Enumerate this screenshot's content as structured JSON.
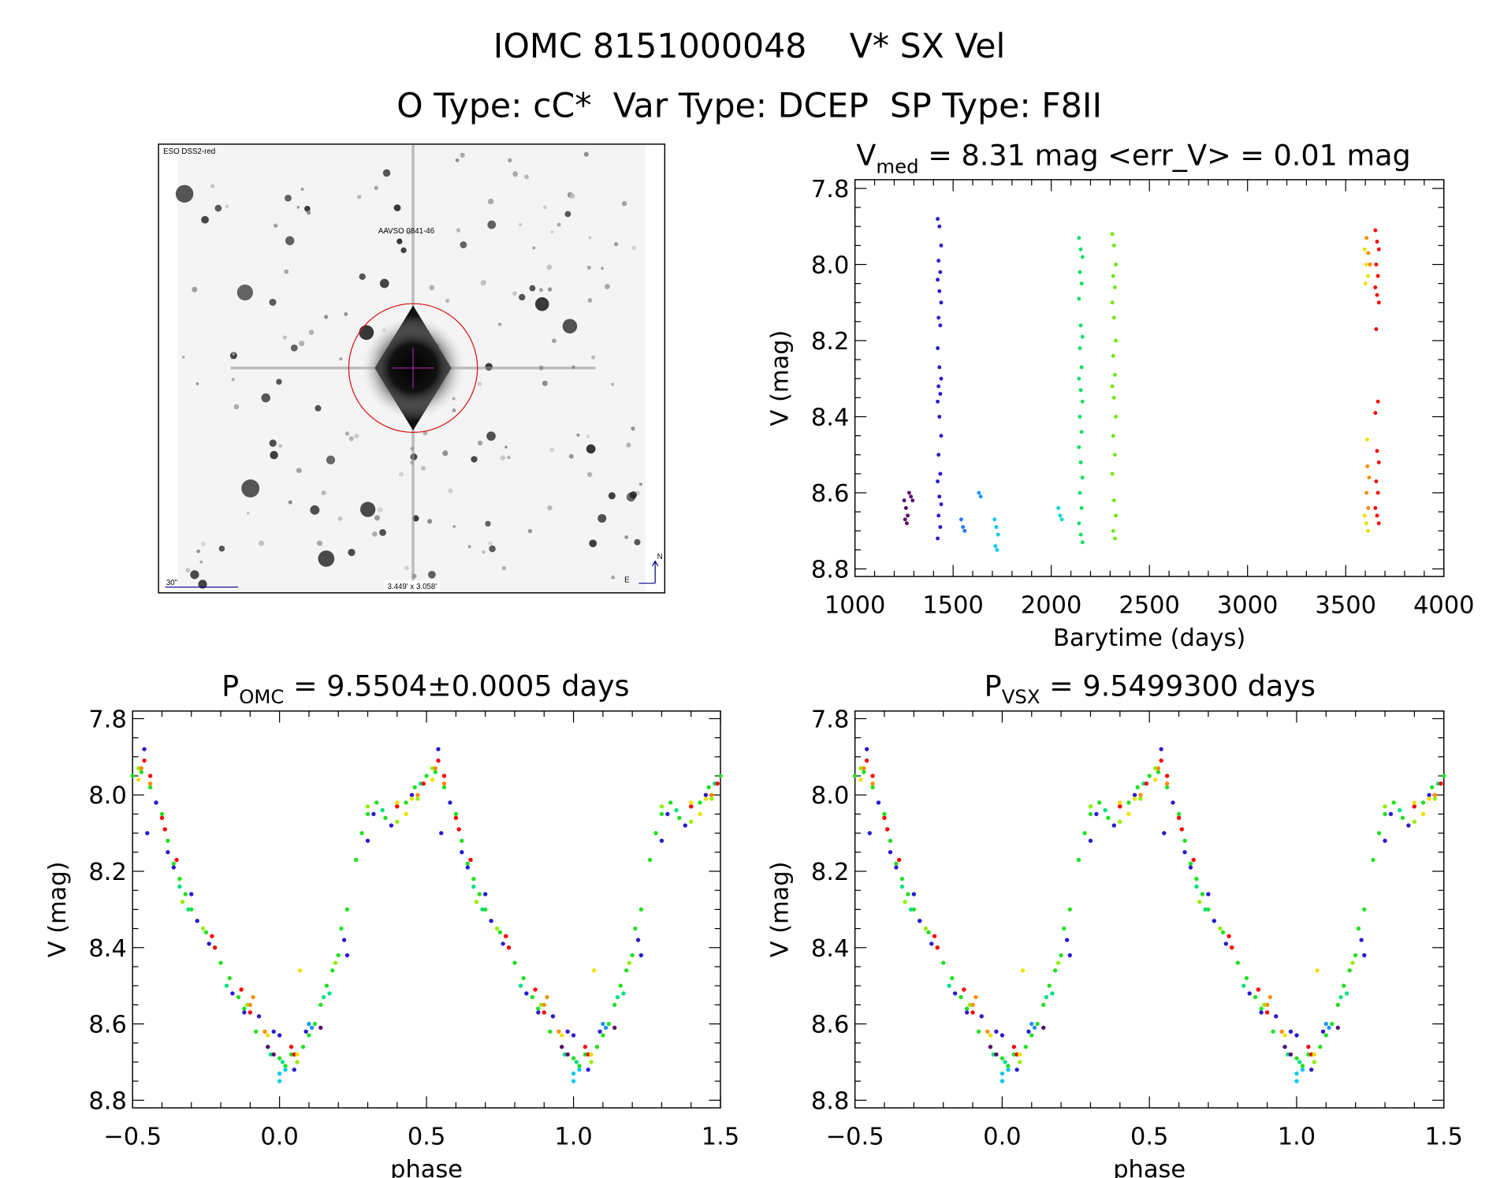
{
  "header": {
    "line1": "IOMC 8151000048    V* SX Vel",
    "line2": "O Type: cC*  Var Type: DCEP  SP Type: F8II"
  },
  "finder_image": {
    "survey_label": "ESO DSS2-red",
    "target_label": "AAVSO 0841-46",
    "scale_label": "30\"",
    "fov_label": "3.449' x 3.058'",
    "north_label": "N",
    "east_label": "E",
    "circle_color": "#d01010",
    "label_color": "#00008b"
  },
  "chart_data": [
    {
      "type": "scatter",
      "title": {
        "main": "V",
        "sub": "med",
        "rest": " = 8.31 mag <err_V> = 0.01 mag"
      },
      "xlabel": "Barytime (days)",
      "ylabel": "V (mag)",
      "xlim": [
        1000,
        4000
      ],
      "ylim": [
        8.82,
        7.777
      ],
      "xticks": [
        1000,
        1500,
        2000,
        2500,
        3000,
        3500,
        4000
      ],
      "xminor": 100,
      "yticks": [
        "7.8",
        "8.0",
        "8.2",
        "8.4",
        "8.6",
        "8.8"
      ],
      "yminor": 0.05,
      "groups": [
        {
          "color": "#5a0a6e",
          "t": 1260,
          "v": [
            8.62,
            8.64,
            8.66,
            8.67,
            8.68
          ]
        },
        {
          "color": "#5a0a6e",
          "t": 1285,
          "v": [
            8.6,
            8.61,
            8.62
          ]
        },
        {
          "color": "#2a1ad0",
          "t": 1430,
          "v": [
            7.88,
            7.9,
            7.95,
            7.99,
            8.02,
            8.04,
            8.07,
            8.1,
            8.14,
            8.16,
            8.22,
            8.27,
            8.3,
            8.32,
            8.34,
            8.36,
            8.4,
            8.45,
            8.5,
            8.55,
            8.57,
            8.61,
            8.63,
            8.66,
            8.69,
            8.72
          ]
        },
        {
          "color": "#1e78ff",
          "t": 1550,
          "v": [
            8.67,
            8.69,
            8.7
          ]
        },
        {
          "color": "#1e90ff",
          "t": 1640,
          "v": [
            8.6,
            8.61
          ]
        },
        {
          "color": "#00c8f0",
          "t": 1720,
          "v": [
            8.67,
            8.69,
            8.71,
            8.74,
            8.75
          ]
        },
        {
          "color": "#00d8d0",
          "t": 2045,
          "v": [
            8.64,
            8.66,
            8.67
          ]
        },
        {
          "color": "#10e060",
          "t": 2150,
          "v": [
            7.93,
            7.96,
            7.98,
            8.02,
            8.05,
            8.09,
            8.16,
            8.19,
            8.22,
            8.27,
            8.3,
            8.33,
            8.36,
            8.4,
            8.44,
            8.48,
            8.52,
            8.56,
            8.6,
            8.64,
            8.68,
            8.71,
            8.73
          ]
        },
        {
          "color": "#70e810",
          "t": 2320,
          "v": [
            7.92,
            7.95,
            8.0,
            8.03,
            8.06,
            8.1,
            8.14,
            8.2,
            8.24,
            8.29,
            8.32,
            8.35,
            8.4,
            8.45,
            8.5,
            8.55,
            8.62,
            8.66,
            8.7,
            8.72
          ]
        },
        {
          "color": "#f0e000",
          "t": 3605,
          "v": [
            7.96,
            8.0,
            8.03,
            8.05,
            8.46,
            8.66,
            8.68,
            8.7
          ]
        },
        {
          "color": "#ff8c00",
          "t": 3615,
          "v": [
            7.93,
            7.97,
            8.0,
            8.53,
            8.56,
            8.6,
            8.64
          ]
        },
        {
          "color": "#ff0000",
          "t": 3660,
          "v": [
            7.91,
            7.94,
            7.96,
            8.0,
            8.03,
            8.06,
            8.08,
            8.1,
            8.17,
            8.36,
            8.39,
            8.49,
            8.52,
            8.57,
            8.6,
            8.64,
            8.66,
            8.68
          ]
        }
      ]
    },
    {
      "type": "scatter",
      "title": {
        "main": "P",
        "sub": "OMC",
        "rest": " = 9.5504±0.0005 days"
      },
      "xlabel": "phase",
      "ylabel": "V (mag)",
      "xlim": [
        -0.5,
        1.5
      ],
      "ylim": [
        8.82,
        7.78
      ],
      "xticks": [
        "−0.5",
        "0.0",
        "0.5",
        "1.0",
        "1.5"
      ],
      "xminor": 0.1,
      "yticks": [
        "7.8",
        "8.0",
        "8.2",
        "8.4",
        "8.6",
        "8.8"
      ],
      "yminor": 0.05,
      "phase_folded": true
    },
    {
      "type": "scatter",
      "title": {
        "main": "P",
        "sub": "VSX",
        "rest": " = 9.5499300 days"
      },
      "xlabel": "phase",
      "ylabel": "V (mag)",
      "xlim": [
        -0.5,
        1.5
      ],
      "ylim": [
        8.82,
        7.78
      ],
      "xticks": [
        "−0.5",
        "0.0",
        "0.5",
        "1.0",
        "1.5"
      ],
      "xminor": 0.1,
      "yticks": [
        "7.8",
        "8.0",
        "8.2",
        "8.4",
        "8.6",
        "8.8"
      ],
      "yminor": 0.05,
      "phase_folded": true
    }
  ],
  "phase_points": [
    {
      "color": "#20e020",
      "points": [
        [
          0.0,
          8.69
        ],
        [
          0.02,
          8.71
        ],
        [
          0.04,
          8.68
        ],
        [
          0.08,
          8.66
        ],
        [
          0.1,
          8.63
        ],
        [
          0.12,
          8.6
        ],
        [
          0.14,
          8.55
        ],
        [
          0.16,
          8.5
        ],
        [
          0.18,
          8.46
        ],
        [
          0.2,
          8.42
        ],
        [
          0.21,
          8.35
        ],
        [
          0.23,
          8.3
        ],
        [
          0.26,
          8.17
        ],
        [
          0.28,
          8.1
        ],
        [
          0.3,
          8.05
        ],
        [
          0.33,
          8.02
        ],
        [
          0.36,
          8.06
        ],
        [
          0.4,
          8.03
        ],
        [
          0.43,
          8.02
        ],
        [
          0.46,
          7.98
        ],
        [
          0.5,
          7.95
        ],
        [
          0.53,
          7.94
        ],
        [
          0.56,
          7.98
        ],
        [
          0.6,
          8.05
        ],
        [
          0.62,
          8.12
        ],
        [
          0.64,
          8.18
        ],
        [
          0.66,
          8.22
        ],
        [
          0.68,
          8.26
        ],
        [
          0.7,
          8.3
        ],
        [
          0.72,
          8.33
        ],
        [
          0.75,
          8.36
        ],
        [
          0.78,
          8.4
        ],
        [
          0.8,
          8.44
        ],
        [
          0.83,
          8.48
        ],
        [
          0.86,
          8.53
        ],
        [
          0.88,
          8.56
        ],
        [
          0.92,
          8.62
        ],
        [
          0.96,
          8.66
        ]
      ]
    },
    {
      "color": "#00e080",
      "points": [
        [
          0.01,
          8.7
        ],
        [
          0.15,
          8.53
        ],
        [
          0.17,
          8.52
        ],
        [
          0.35,
          8.04
        ],
        [
          0.48,
          7.97
        ],
        [
          0.66,
          8.24
        ],
        [
          0.69,
          8.3
        ],
        [
          0.82,
          8.5
        ],
        [
          0.97,
          8.68
        ]
      ]
    },
    {
      "color": "#90f000",
      "points": [
        [
          0.06,
          8.7
        ],
        [
          0.19,
          8.44
        ],
        [
          0.3,
          8.03
        ],
        [
          0.4,
          8.07
        ],
        [
          0.47,
          8.01
        ],
        [
          0.52,
          7.93
        ],
        [
          0.67,
          8.28
        ],
        [
          0.74,
          8.35
        ],
        [
          0.89,
          8.55
        ]
      ]
    },
    {
      "color": "#2a1ad0",
      "points": [
        [
          0.0,
          8.63
        ],
        [
          0.05,
          8.72
        ],
        [
          0.09,
          8.62
        ],
        [
          0.22,
          8.38
        ],
        [
          0.23,
          8.42
        ],
        [
          0.3,
          8.12
        ],
        [
          0.32,
          8.05
        ],
        [
          0.38,
          8.08
        ],
        [
          0.45,
          8.0
        ],
        [
          0.54,
          7.88
        ],
        [
          0.55,
          8.1
        ],
        [
          0.58,
          8.02
        ],
        [
          0.62,
          8.15
        ],
        [
          0.64,
          8.19
        ],
        [
          0.7,
          8.26
        ],
        [
          0.72,
          8.33
        ],
        [
          0.76,
          8.39
        ],
        [
          0.84,
          8.52
        ],
        [
          0.88,
          8.57
        ],
        [
          0.93,
          8.58
        ],
        [
          0.98,
          8.62
        ]
      ]
    },
    {
      "color": "#ff0000",
      "points": [
        [
          0.04,
          8.66
        ],
        [
          0.05,
          8.68
        ],
        [
          0.4,
          8.03
        ],
        [
          0.49,
          7.97
        ],
        [
          0.54,
          7.91
        ],
        [
          0.56,
          7.95
        ],
        [
          0.6,
          8.06
        ],
        [
          0.61,
          8.09
        ],
        [
          0.65,
          8.17
        ],
        [
          0.77,
          8.37
        ],
        [
          0.78,
          8.4
        ],
        [
          0.87,
          8.51
        ],
        [
          0.9,
          8.57
        ]
      ]
    },
    {
      "color": "#ff8c00",
      "points": [
        [
          0.53,
          7.93
        ],
        [
          0.56,
          7.97
        ],
        [
          0.9,
          8.55
        ],
        [
          0.91,
          8.53
        ],
        [
          0.95,
          8.62
        ],
        [
          0.47,
          8.0
        ]
      ]
    },
    {
      "color": "#f0e000",
      "points": [
        [
          0.07,
          8.46
        ],
        [
          0.06,
          8.68
        ],
        [
          0.4,
          8.02
        ],
        [
          0.43,
          8.05
        ],
        [
          0.45,
          8.01
        ],
        [
          0.52,
          7.96
        ],
        [
          0.96,
          8.63
        ]
      ]
    },
    {
      "color": "#5a0a6e",
      "points": [
        [
          0.96,
          8.66
        ],
        [
          0.98,
          8.68
        ],
        [
          0.14,
          8.61
        ]
      ]
    },
    {
      "color": "#1e90ff",
      "points": [
        [
          0.1,
          8.6
        ],
        [
          0.11,
          8.61
        ]
      ]
    },
    {
      "color": "#00c8f0",
      "points": [
        [
          0.0,
          8.73
        ],
        [
          0.0,
          8.75
        ],
        [
          0.02,
          8.72
        ]
      ]
    }
  ]
}
